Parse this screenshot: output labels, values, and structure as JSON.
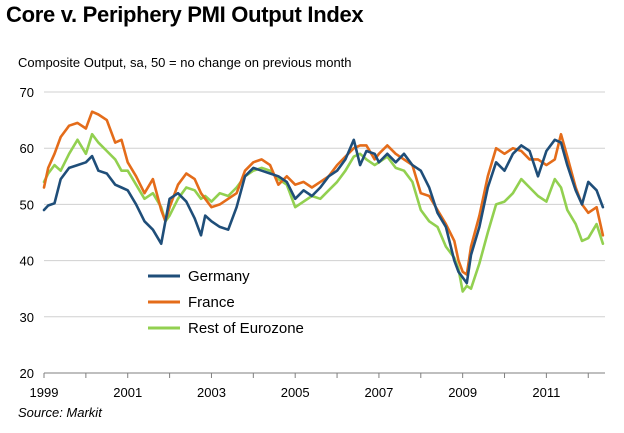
{
  "chart_data": {
    "type": "line",
    "title": "Core v. Periphery PMI Output Index",
    "subtitle": "Composite Output, sa, 50 = no change on previous month",
    "source": "Source: Markit",
    "xlabel": "",
    "ylabel": "",
    "ylim": [
      20,
      70
    ],
    "yticks": [
      20,
      30,
      40,
      50,
      60,
      70
    ],
    "xlim": [
      1999.0,
      2012.4
    ],
    "xticks": [
      {
        "value": 1999,
        "label": "1999"
      },
      {
        "value": 2001,
        "label": "2001"
      },
      {
        "value": 2003,
        "label": "2003"
      },
      {
        "value": 2005,
        "label": "2005"
      },
      {
        "value": 2007,
        "label": "2007"
      },
      {
        "value": 2009,
        "label": "2009"
      },
      {
        "value": 2011,
        "label": "2011"
      }
    ],
    "grid": "horizontal",
    "legend_position": "lower-left",
    "series": [
      {
        "name": "Germany",
        "color": "#1f4e79",
        "x": [
          1999.0,
          1999.1,
          1999.25,
          1999.4,
          1999.6,
          1999.8,
          2000.0,
          2000.15,
          2000.3,
          2000.5,
          2000.7,
          2000.85,
          2001.0,
          2001.2,
          2001.4,
          2001.6,
          2001.8,
          2001.9,
          2002.0,
          2002.2,
          2002.4,
          2002.6,
          2002.75,
          2002.85,
          2003.0,
          2003.2,
          2003.4,
          2003.6,
          2003.8,
          2004.0,
          2004.2,
          2004.4,
          2004.6,
          2004.8,
          2005.0,
          2005.2,
          2005.4,
          2005.6,
          2005.8,
          2006.0,
          2006.2,
          2006.4,
          2006.55,
          2006.7,
          2006.9,
          2007.0,
          2007.2,
          2007.4,
          2007.6,
          2007.8,
          2008.0,
          2008.2,
          2008.4,
          2008.6,
          2008.8,
          2008.9,
          2009.0,
          2009.1,
          2009.2,
          2009.4,
          2009.6,
          2009.8,
          2010.0,
          2010.2,
          2010.4,
          2010.6,
          2010.8,
          2011.0,
          2011.2,
          2011.35,
          2011.5,
          2011.7,
          2011.85,
          2012.0,
          2012.2,
          2012.35
        ],
        "values": [
          49.0,
          49.8,
          50.2,
          54.5,
          56.5,
          57.0,
          57.5,
          58.6,
          56.0,
          55.5,
          53.5,
          53.0,
          52.5,
          50.0,
          47.0,
          45.5,
          43.0,
          47.0,
          51.0,
          52.0,
          50.5,
          47.5,
          44.5,
          48.0,
          47.0,
          46.0,
          45.5,
          49.5,
          55.0,
          56.5,
          56.0,
          55.5,
          55.0,
          54.0,
          51.0,
          52.5,
          51.5,
          53.0,
          55.0,
          56.0,
          58.0,
          61.5,
          57.0,
          59.5,
          59.0,
          57.5,
          59.0,
          57.5,
          59.0,
          57.0,
          56.0,
          53.0,
          48.5,
          46.0,
          40.0,
          38.0,
          37.0,
          36.0,
          41.0,
          46.0,
          53.0,
          57.5,
          56.0,
          59.0,
          60.5,
          59.5,
          55.0,
          59.5,
          61.5,
          61.0,
          57.0,
          52.5,
          50.0,
          54.0,
          52.5,
          49.5
        ]
      },
      {
        "name": "France",
        "color": "#e46c1a",
        "x": [
          1999.0,
          1999.1,
          1999.25,
          1999.4,
          1999.6,
          1999.8,
          2000.0,
          2000.15,
          2000.3,
          2000.5,
          2000.7,
          2000.85,
          2001.0,
          2001.2,
          2001.4,
          2001.6,
          2001.8,
          2001.9,
          2002.0,
          2002.2,
          2002.4,
          2002.6,
          2002.75,
          2002.85,
          2003.0,
          2003.2,
          2003.4,
          2003.6,
          2003.8,
          2004.0,
          2004.2,
          2004.4,
          2004.6,
          2004.8,
          2005.0,
          2005.2,
          2005.4,
          2005.6,
          2005.8,
          2006.0,
          2006.2,
          2006.4,
          2006.55,
          2006.7,
          2006.9,
          2007.0,
          2007.2,
          2007.4,
          2007.6,
          2007.8,
          2008.0,
          2008.2,
          2008.4,
          2008.6,
          2008.8,
          2008.9,
          2009.0,
          2009.1,
          2009.2,
          2009.4,
          2009.6,
          2009.8,
          2010.0,
          2010.2,
          2010.4,
          2010.6,
          2010.8,
          2011.0,
          2011.2,
          2011.35,
          2011.5,
          2011.7,
          2011.85,
          2012.0,
          2012.2,
          2012.35
        ],
        "values": [
          53.0,
          56.5,
          59.0,
          62.0,
          64.0,
          64.5,
          63.5,
          66.5,
          66.0,
          65.0,
          61.0,
          61.5,
          57.5,
          55.0,
          52.0,
          54.5,
          49.0,
          47.0,
          49.5,
          53.5,
          55.5,
          54.5,
          52.0,
          51.0,
          49.5,
          50.0,
          51.0,
          52.0,
          56.0,
          57.5,
          58.0,
          57.0,
          53.5,
          55.0,
          53.5,
          54.0,
          53.0,
          54.0,
          55.0,
          57.0,
          58.5,
          60.0,
          60.5,
          60.5,
          58.0,
          59.0,
          60.5,
          59.0,
          58.0,
          57.0,
          52.0,
          51.5,
          49.0,
          46.5,
          43.5,
          40.0,
          38.0,
          37.5,
          42.5,
          48.0,
          55.0,
          60.0,
          59.0,
          60.0,
          59.5,
          58.0,
          58.0,
          57.0,
          58.0,
          62.5,
          58.5,
          53.0,
          50.0,
          48.5,
          49.5,
          44.5
        ]
      },
      {
        "name": "Rest of Eurozone",
        "color": "#92d050",
        "x": [
          1999.0,
          1999.1,
          1999.25,
          1999.4,
          1999.6,
          1999.8,
          2000.0,
          2000.15,
          2000.3,
          2000.5,
          2000.7,
          2000.85,
          2001.0,
          2001.2,
          2001.4,
          2001.6,
          2001.8,
          2001.9,
          2002.0,
          2002.2,
          2002.4,
          2002.6,
          2002.75,
          2002.85,
          2003.0,
          2003.2,
          2003.4,
          2003.6,
          2003.8,
          2004.0,
          2004.2,
          2004.4,
          2004.6,
          2004.8,
          2005.0,
          2005.2,
          2005.4,
          2005.6,
          2005.8,
          2006.0,
          2006.2,
          2006.4,
          2006.55,
          2006.7,
          2006.9,
          2007.0,
          2007.2,
          2007.4,
          2007.6,
          2007.8,
          2008.0,
          2008.2,
          2008.4,
          2008.6,
          2008.8,
          2008.9,
          2009.0,
          2009.1,
          2009.2,
          2009.4,
          2009.6,
          2009.8,
          2010.0,
          2010.2,
          2010.4,
          2010.6,
          2010.8,
          2011.0,
          2011.2,
          2011.35,
          2011.5,
          2011.7,
          2011.85,
          2012.0,
          2012.2,
          2012.35
        ],
        "values": [
          54.0,
          55.5,
          57.0,
          56.0,
          59.0,
          61.5,
          59.0,
          62.5,
          61.0,
          59.5,
          58.0,
          56.0,
          56.0,
          53.5,
          51.0,
          52.0,
          49.5,
          47.0,
          48.0,
          51.0,
          53.0,
          52.5,
          51.0,
          51.5,
          50.5,
          52.0,
          51.5,
          53.0,
          55.0,
          56.0,
          56.5,
          56.0,
          54.5,
          53.5,
          49.5,
          50.5,
          51.5,
          51.0,
          52.5,
          54.0,
          56.0,
          58.5,
          59.0,
          58.0,
          57.0,
          57.5,
          58.5,
          56.5,
          56.0,
          54.0,
          49.0,
          47.0,
          46.0,
          42.5,
          40.5,
          38.5,
          34.5,
          35.5,
          35.0,
          39.5,
          45.0,
          50.0,
          50.5,
          52.0,
          54.5,
          53.0,
          51.5,
          50.5,
          54.5,
          53.0,
          49.0,
          46.5,
          43.5,
          44.0,
          46.5,
          43.0
        ]
      }
    ]
  }
}
